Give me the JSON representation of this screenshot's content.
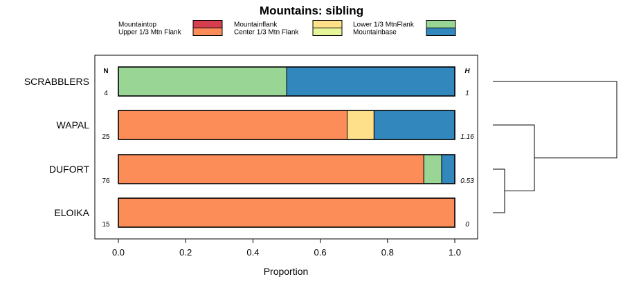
{
  "chart_data": {
    "type": "bar",
    "orientation": "horizontal",
    "stacked": true,
    "title": "Mountains: sibling",
    "xlabel": "Proportion",
    "ylabel": "",
    "xlim": [
      0,
      1
    ],
    "xticks": [
      0,
      0.2,
      0.4,
      0.6,
      0.8,
      1
    ],
    "xtick_labels": [
      "0.0",
      "0.2",
      "0.4",
      "0.6",
      "0.8",
      "1.0"
    ],
    "categories": [
      "SCRABBLERS",
      "WAPAL",
      "DUFORT",
      "ELOIKA"
    ],
    "n_header": "N",
    "h_header": "H",
    "n": [
      "4",
      "25",
      "76",
      "15"
    ],
    "h": [
      "1",
      "1.16",
      "0.53",
      "0"
    ],
    "series": [
      {
        "name": "Mountaintop",
        "color": "#d53e4f",
        "values": [
          0,
          0,
          0,
          0
        ]
      },
      {
        "name": "Upper 1/3 Mtn Flank",
        "color": "#fc8d59",
        "values": [
          0,
          0.68,
          0.908,
          1.0
        ]
      },
      {
        "name": "Mountainflank",
        "color": "#fee08b",
        "values": [
          0,
          0.08,
          0,
          0
        ]
      },
      {
        "name": "Center 1/3 Mtn Flank",
        "color": "#e6f598",
        "values": [
          0,
          0,
          0,
          0
        ]
      },
      {
        "name": "Lower 1/3 MtnFlank",
        "color": "#99d594",
        "values": [
          0.5,
          0,
          0.053,
          0
        ]
      },
      {
        "name": "Mountainbase",
        "color": "#3288bd",
        "values": [
          0.5,
          0.24,
          0.039,
          0
        ]
      }
    ],
    "legend": "top",
    "dendrogram": {
      "leaves": [
        "SCRABBLERS",
        "WAPAL",
        "DUFORT",
        "ELOIKA"
      ],
      "merges": [
        [
          "DUFORT",
          "ELOIKA"
        ],
        [
          "WAPAL",
          "DUFORT+ELOIKA"
        ],
        [
          "SCRABBLERS",
          "WAPAL+DUFORT+ELOIKA"
        ]
      ]
    }
  }
}
